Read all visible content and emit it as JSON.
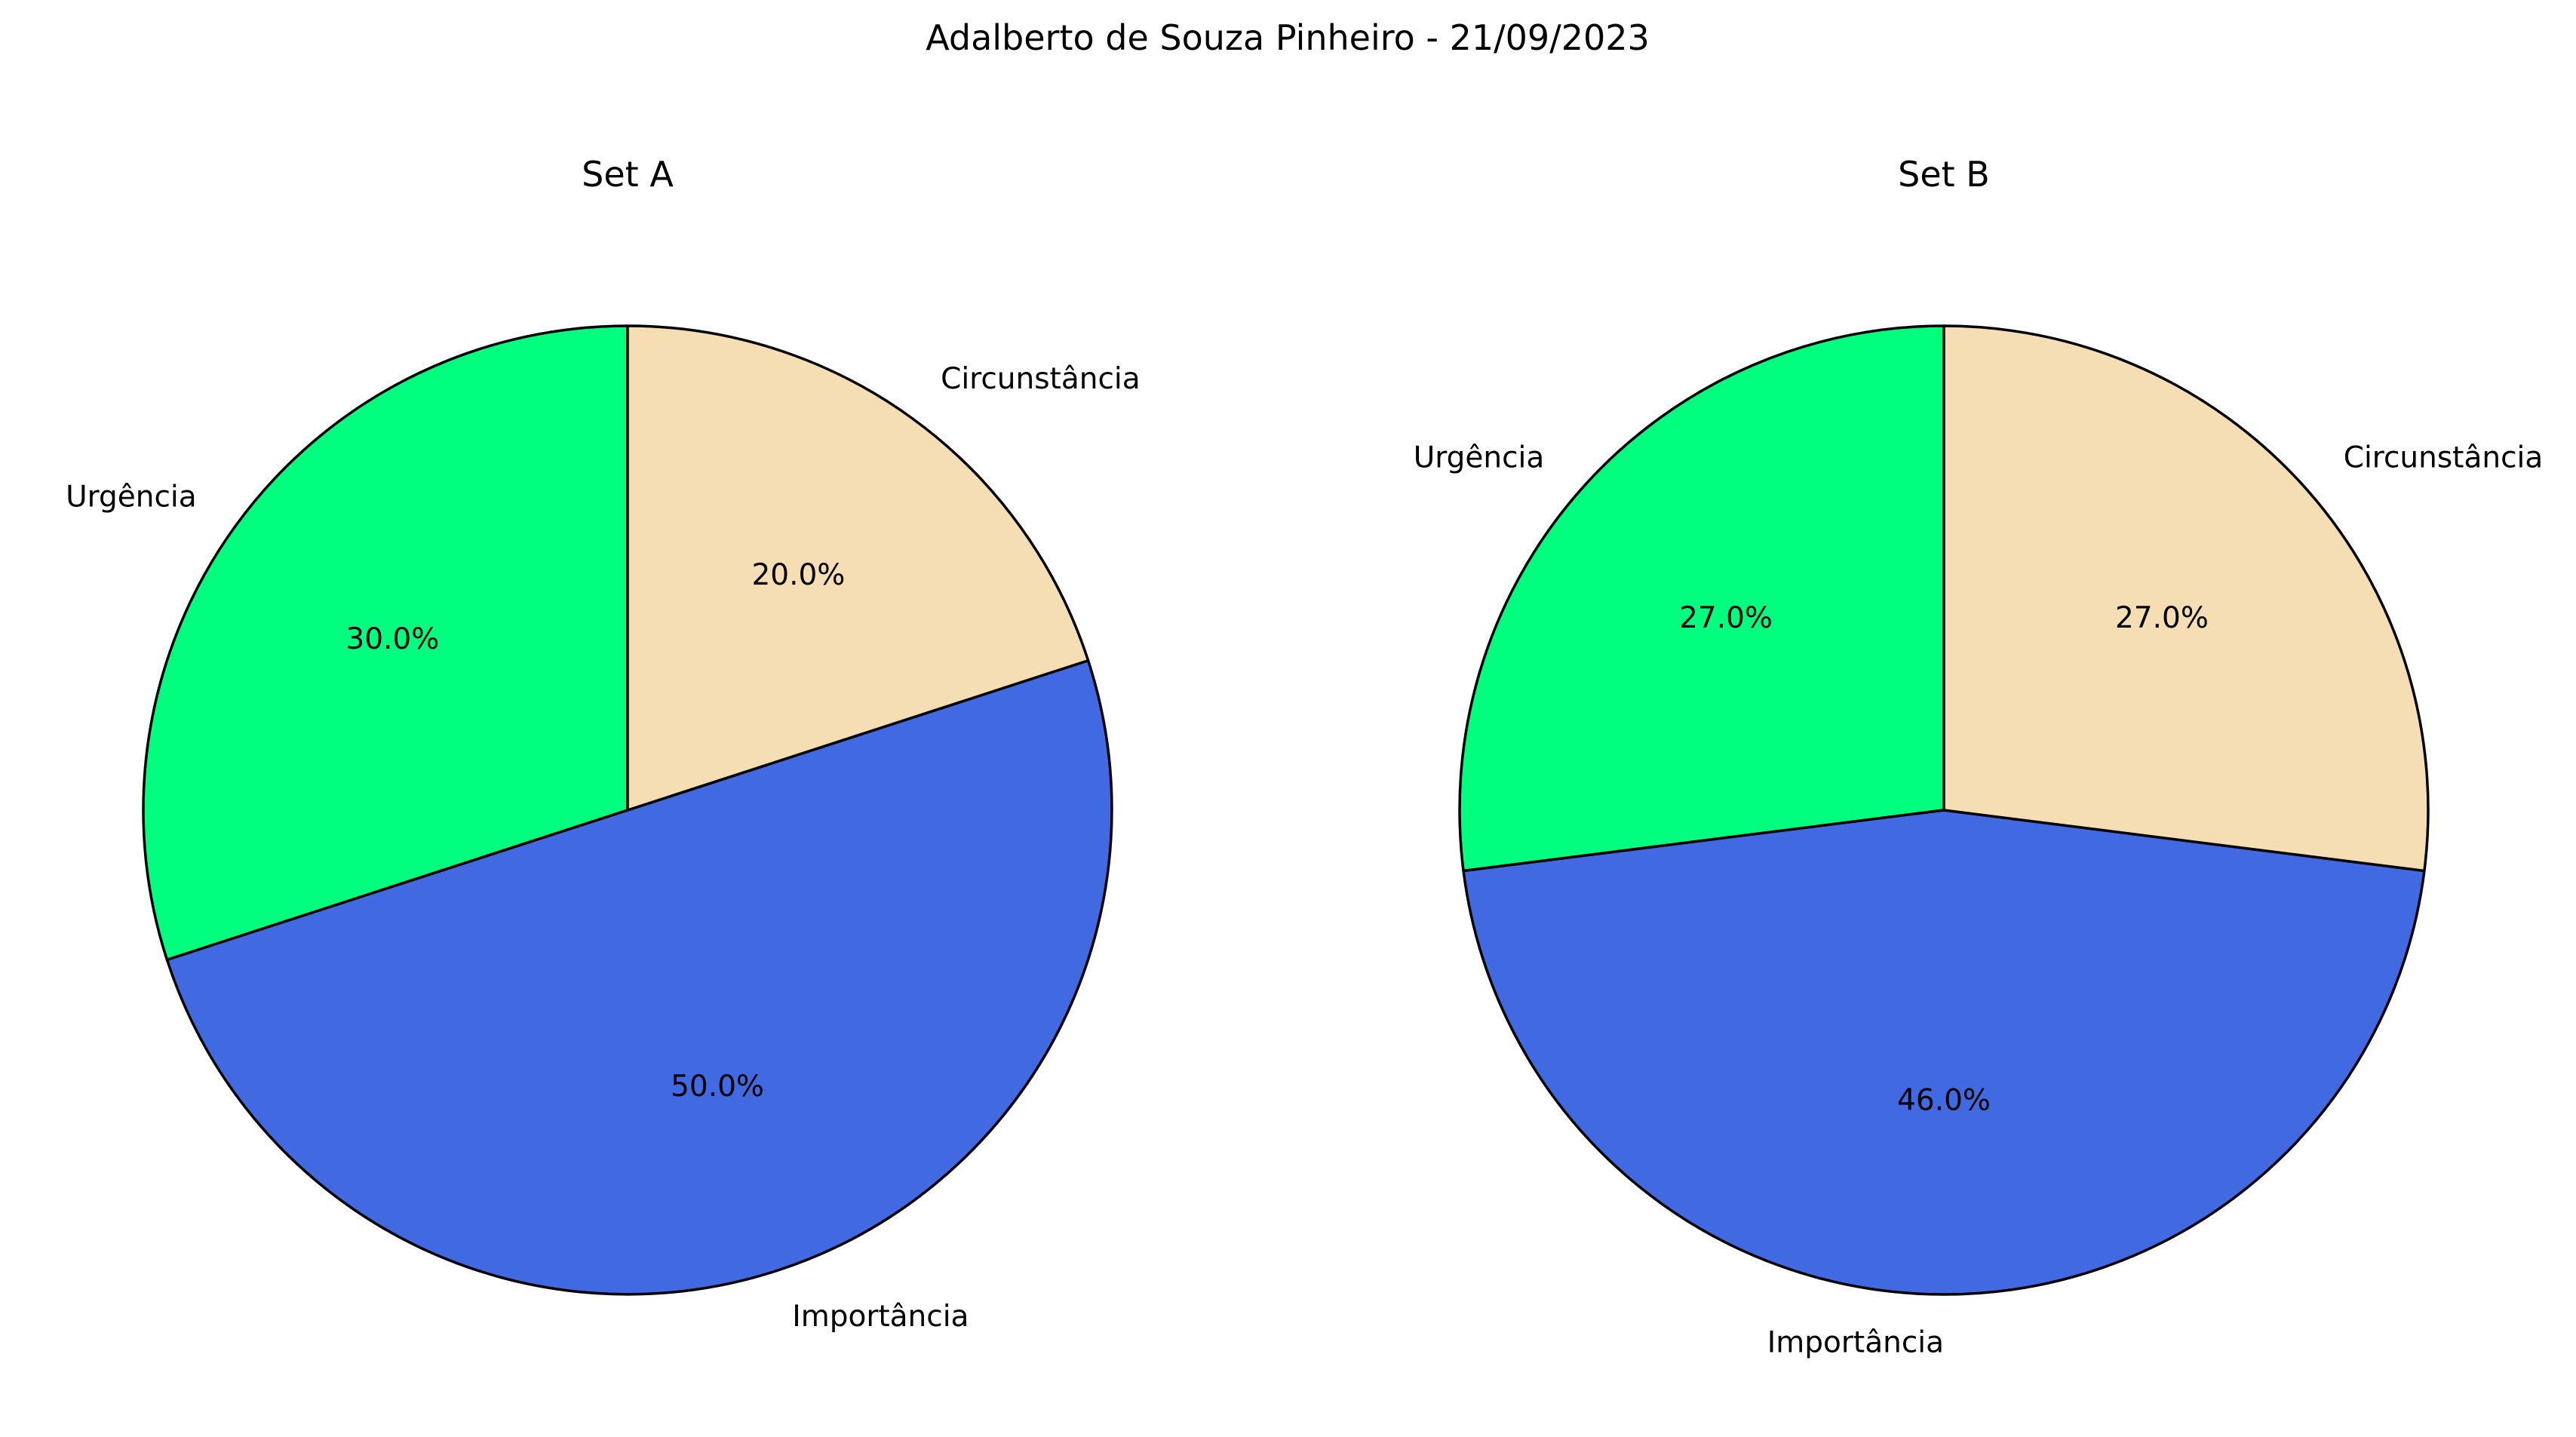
{
  "figure": {
    "title": "Adalberto de Souza Pinheiro - 21/09/2023"
  },
  "chart_data": [
    {
      "type": "pie",
      "title": "Set A",
      "labels": [
        "Urgência",
        "Importância",
        "Circunstância"
      ],
      "values": [
        30.0,
        50.0,
        20.0
      ],
      "autopct": [
        "30.0%",
        "50.0%",
        "20.0%"
      ],
      "colors": [
        "#00ff7f",
        "#4169e1",
        "#f5deb3"
      ],
      "start_angle_deg": 90,
      "direction": "counterclockwise"
    },
    {
      "type": "pie",
      "title": "Set B",
      "labels": [
        "Urgência",
        "Importância",
        "Circunstância"
      ],
      "values": [
        27.0,
        46.0,
        27.0
      ],
      "autopct": [
        "27.0%",
        "46.0%",
        "27.0%"
      ],
      "colors": [
        "#00ff7f",
        "#4169e1",
        "#f5deb3"
      ],
      "start_angle_deg": 90,
      "direction": "counterclockwise"
    }
  ]
}
